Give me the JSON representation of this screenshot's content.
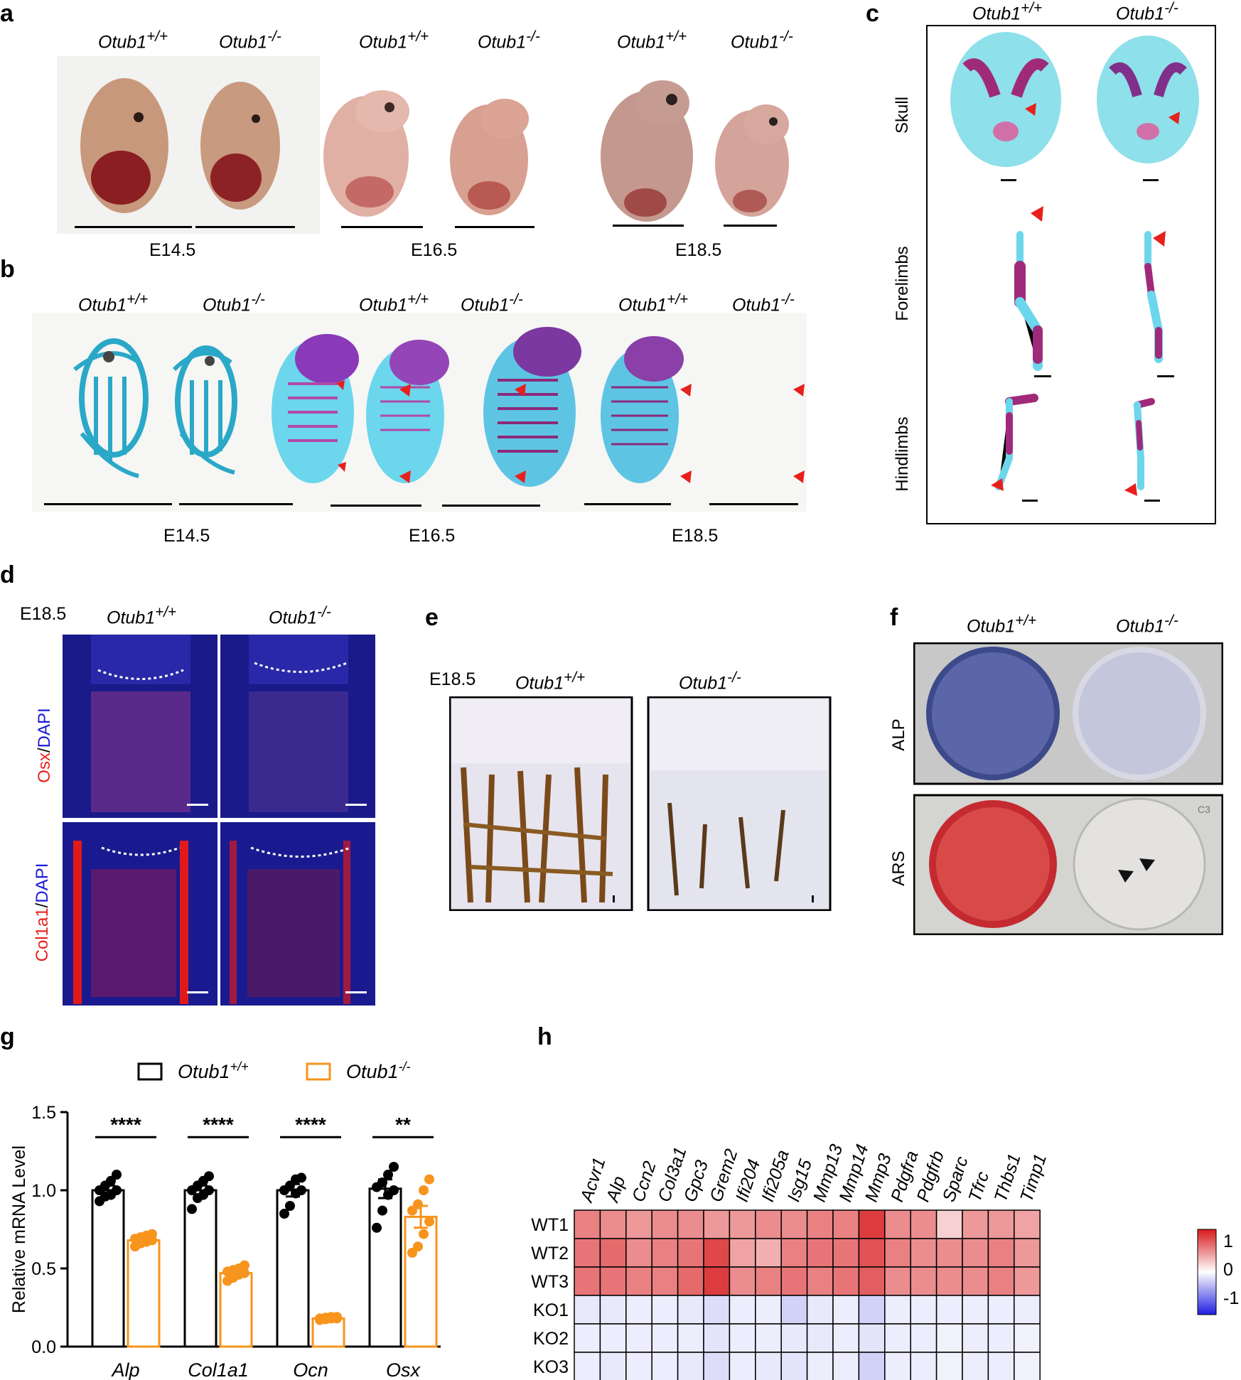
{
  "panels": {
    "a": "a",
    "b": "b",
    "c": "c",
    "d": "d",
    "e": "e",
    "f": "f",
    "g": "g",
    "h": "h"
  },
  "genotypes": {
    "wt": "Otub1",
    "wt_sup": "+/+",
    "ko": "Otub1",
    "ko_sup": "-/-"
  },
  "stages": {
    "e145": "E14.5",
    "e165": "E16.5",
    "e185": "E18.5"
  },
  "panel_c": {
    "rows": [
      "Skull",
      "Forelimbs",
      "Hindlimbs"
    ]
  },
  "panel_d": {
    "stage": "E18.5",
    "stain1": {
      "marker": "Osx",
      "sep": "/",
      "dapi": "DAPI"
    },
    "stain2": {
      "marker": "Col1a1",
      "sep": "/",
      "dapi": "DAPI"
    }
  },
  "panel_e": {
    "stage": "E18.5"
  },
  "panel_f": {
    "rows": [
      "ALP",
      "ARS"
    ],
    "well_label": "C3"
  },
  "colors": {
    "wt_bar": "#000000",
    "ko_bar": "#f7941d",
    "arrow": "#e8201c",
    "heat_high": "#d7191c",
    "heat_mid": "#ffffff",
    "heat_low": "#1f1fe0"
  },
  "chart_data": [
    {
      "type": "bar",
      "panel": "g",
      "ylabel": "Relative mRNA Level",
      "ylim": [
        0.0,
        1.5
      ],
      "yticks": [
        "0.0",
        "0.5",
        "1.0",
        "1.5"
      ],
      "categories": [
        "Alp",
        "Col1a1",
        "Ocn",
        "Osx"
      ],
      "legend": [
        "Otub1+/+",
        "Otub1-/-"
      ],
      "series": [
        {
          "name": "Otub1+/+",
          "values": [
            1.0,
            1.0,
            1.0,
            1.01
          ],
          "sem": [
            0.03,
            0.03,
            0.04,
            0.06
          ],
          "points": [
            [
              0.93,
              0.96,
              0.97,
              1.0,
              1.0,
              1.03,
              1.06,
              1.1
            ],
            [
              0.88,
              0.95,
              0.97,
              1.0,
              1.0,
              1.03,
              1.06,
              1.09
            ],
            [
              0.85,
              0.9,
              0.98,
              1.0,
              1.0,
              1.03,
              1.07,
              1.08
            ],
            [
              0.76,
              0.87,
              0.97,
              1.0,
              1.02,
              1.05,
              1.1,
              1.15
            ]
          ]
        },
        {
          "name": "Otub1-/-",
          "values": [
            0.68,
            0.47,
            0.18,
            0.83
          ],
          "sem": [
            0.01,
            0.01,
            0.005,
            0.07
          ],
          "points": [
            [
              0.64,
              0.66,
              0.67,
              0.68,
              0.69,
              0.7,
              0.71,
              0.72
            ],
            [
              0.42,
              0.44,
              0.46,
              0.47,
              0.48,
              0.49,
              0.5,
              0.52
            ],
            [
              0.17,
              0.175,
              0.18,
              0.18,
              0.18,
              0.185,
              0.19,
              0.19
            ],
            [
              0.6,
              0.64,
              0.72,
              0.8,
              0.87,
              0.91,
              1.0,
              1.07
            ]
          ]
        }
      ],
      "significance": [
        "****",
        "****",
        "****",
        "**"
      ]
    },
    {
      "type": "heatmap",
      "panel": "h",
      "columns": [
        "Acvr1",
        "Alp",
        "Ccn2",
        "Col3a1",
        "Gpc3",
        "Grem2",
        "Ifi204",
        "Ifi205a",
        "Isg15",
        "Mmp13",
        "Mmp14",
        "Mmp3",
        "Pdgfra",
        "Pdgfrb",
        "Sparc",
        "Tfrc",
        "Thbs1",
        "Timp1"
      ],
      "rows": [
        "WT1",
        "WT2",
        "WT3",
        "KO1",
        "KO2",
        "KO3"
      ],
      "values": [
        [
          0.55,
          0.5,
          0.45,
          0.5,
          0.5,
          0.45,
          0.45,
          0.5,
          0.5,
          0.55,
          0.55,
          0.85,
          0.5,
          0.5,
          0.2,
          0.45,
          0.45,
          0.4
        ],
        [
          0.6,
          0.65,
          0.5,
          0.55,
          0.6,
          0.8,
          0.4,
          0.35,
          0.55,
          0.6,
          0.6,
          0.75,
          0.55,
          0.5,
          0.5,
          0.5,
          0.55,
          0.45
        ],
        [
          0.6,
          0.6,
          0.55,
          0.55,
          0.65,
          0.85,
          0.5,
          0.55,
          0.6,
          0.55,
          0.6,
          0.7,
          0.5,
          0.5,
          0.5,
          0.5,
          0.55,
          0.45
        ],
        [
          -0.1,
          -0.1,
          -0.08,
          -0.08,
          -0.1,
          -0.15,
          -0.08,
          -0.08,
          -0.2,
          -0.1,
          -0.08,
          -0.2,
          -0.08,
          -0.08,
          -0.08,
          -0.08,
          -0.08,
          -0.08
        ],
        [
          -0.08,
          -0.08,
          -0.08,
          -0.08,
          -0.08,
          -0.12,
          -0.08,
          -0.08,
          -0.1,
          -0.1,
          -0.08,
          -0.12,
          -0.08,
          -0.08,
          -0.06,
          -0.08,
          -0.08,
          -0.06
        ],
        [
          -0.08,
          -0.1,
          -0.08,
          -0.08,
          -0.1,
          -0.15,
          -0.08,
          -0.1,
          -0.12,
          -0.08,
          -0.08,
          -0.2,
          -0.08,
          -0.08,
          -0.06,
          -0.08,
          -0.08,
          -0.06
        ]
      ],
      "colorbar_ticks": [
        "1",
        "0",
        "-1"
      ],
      "range": [
        -1,
        1
      ]
    }
  ]
}
